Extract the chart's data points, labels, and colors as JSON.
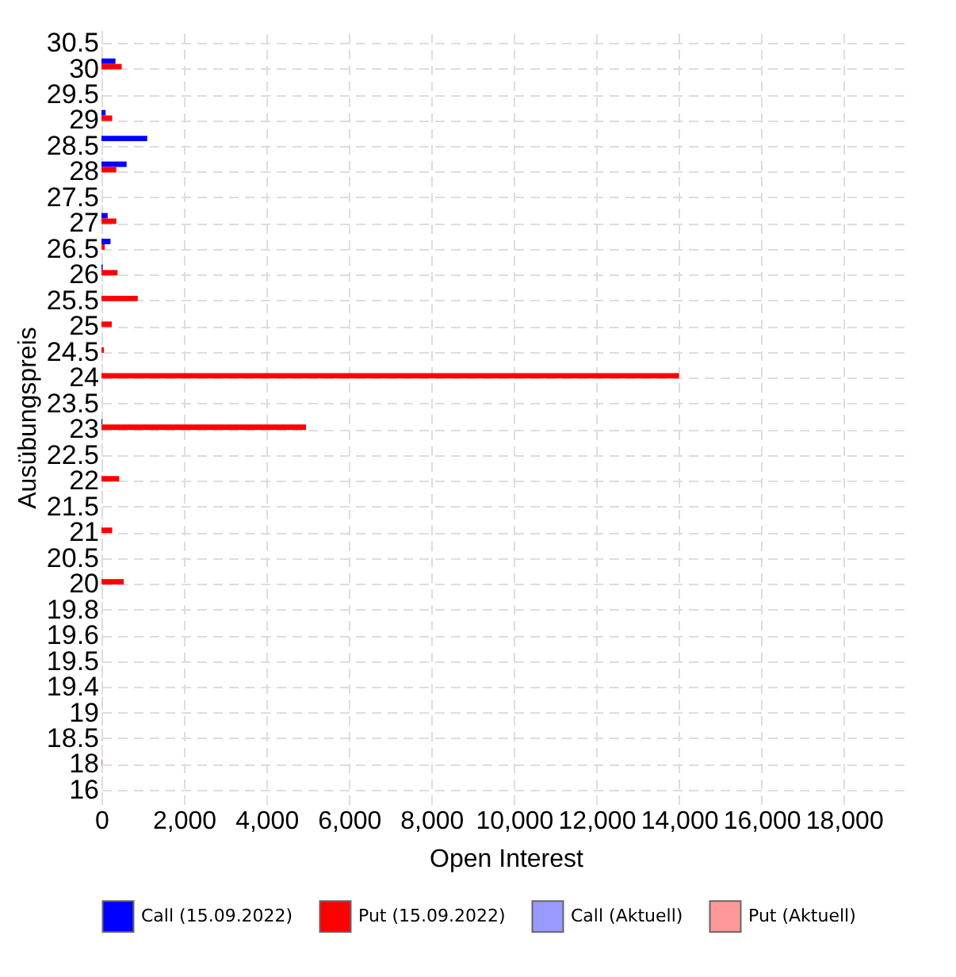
{
  "chart_data": {
    "type": "bar",
    "orientation": "horizontal",
    "xlabel": "Open Interest",
    "ylabel": "Ausübungspreis",
    "categories": [
      "30.5",
      "30",
      "29.5",
      "29",
      "28.5",
      "28",
      "27.5",
      "27",
      "26.5",
      "26",
      "25.5",
      "25",
      "24.5",
      "24",
      "23.5",
      "23",
      "22.5",
      "22",
      "21.5",
      "21",
      "20.5",
      "20",
      "19.8",
      "19.6",
      "19.5",
      "19.4",
      "19",
      "18.5",
      "18",
      "16"
    ],
    "series": [
      {
        "name": "Call (15.09.2022)",
        "color": "#0000ff",
        "values": [
          null,
          340,
          null,
          100,
          1110,
          610,
          null,
          150,
          220,
          30,
          null,
          null,
          null,
          null,
          null,
          20,
          null,
          null,
          null,
          null,
          null,
          null,
          null,
          null,
          null,
          null,
          null,
          null,
          null,
          null
        ]
      },
      {
        "name": "Put (15.09.2022)",
        "color": "#ff0000",
        "values": [
          null,
          490,
          null,
          260,
          null,
          360,
          null,
          360,
          80,
          390,
          880,
          250,
          60,
          14000,
          null,
          4960,
          null,
          430,
          null,
          260,
          null,
          540,
          null,
          null,
          null,
          null,
          null,
          null,
          10,
          null
        ]
      },
      {
        "name": "Call (Aktuell)",
        "color": "#9999ff",
        "values": [
          null,
          null,
          null,
          null,
          null,
          null,
          null,
          null,
          null,
          null,
          null,
          null,
          null,
          null,
          null,
          null,
          null,
          null,
          null,
          null,
          null,
          null,
          null,
          null,
          null,
          null,
          null,
          null,
          null,
          null
        ]
      },
      {
        "name": "Put (Aktuell)",
        "color": "#ff9999",
        "values": [
          null,
          null,
          null,
          null,
          null,
          null,
          null,
          null,
          null,
          null,
          null,
          null,
          null,
          null,
          null,
          null,
          null,
          null,
          null,
          null,
          null,
          null,
          null,
          null,
          null,
          null,
          null,
          null,
          null,
          null
        ]
      }
    ],
    "xlim": [
      0,
      19600
    ],
    "xticks": [
      0,
      {
        "value": 2000,
        "label": "2,000"
      },
      {
        "value": 4000,
        "label": "4,000"
      },
      {
        "value": 6000,
        "label": "6,000"
      },
      {
        "value": 8000,
        "label": "8,000"
      },
      {
        "value": 10000,
        "label": "10,000"
      },
      {
        "value": 12000,
        "label": "12,000"
      },
      {
        "value": 14000,
        "label": "14,000"
      },
      {
        "value": 16000,
        "label": "16,000"
      },
      {
        "value": 18000,
        "label": "18,000"
      }
    ],
    "grid": true,
    "legend": "bottom"
  }
}
